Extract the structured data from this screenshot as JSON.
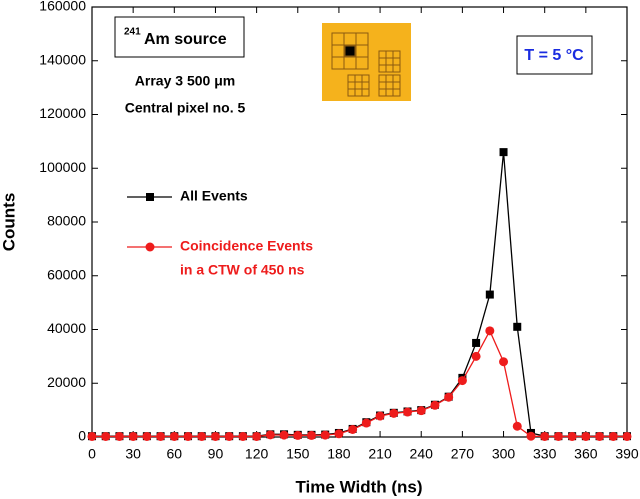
{
  "chart_data": {
    "type": "line",
    "x_label": "Time Width (ns)",
    "y_label": "Counts",
    "x": [
      0,
      10,
      20,
      30,
      40,
      50,
      60,
      70,
      80,
      90,
      100,
      110,
      120,
      130,
      140,
      150,
      160,
      170,
      180,
      190,
      200,
      210,
      220,
      230,
      240,
      250,
      260,
      270,
      280,
      290,
      300,
      310,
      320,
      330,
      340,
      350,
      360,
      370,
      380,
      390
    ],
    "series": [
      {
        "name": "All Events",
        "color": "#000000",
        "marker": "square",
        "values": [
          300,
          300,
          300,
          300,
          300,
          300,
          300,
          300,
          300,
          300,
          300,
          300,
          300,
          1000,
          1000,
          800,
          800,
          900,
          1500,
          3000,
          5500,
          8000,
          9000,
          9500,
          10000,
          12000,
          15000,
          22000,
          35000,
          53000,
          106000,
          41000,
          1500,
          300,
          300,
          300,
          300,
          300,
          300,
          300
        ]
      },
      {
        "name": [
          "Coincidence Events",
          "in a CTW of 450 ns"
        ],
        "color": "#ee1c1c",
        "marker": "circle",
        "values": [
          200,
          200,
          200,
          200,
          200,
          200,
          200,
          200,
          200,
          200,
          200,
          200,
          200,
          800,
          700,
          600,
          600,
          700,
          1200,
          2800,
          5200,
          7800,
          8800,
          9300,
          9800,
          11800,
          14800,
          21000,
          30000,
          39500,
          28000,
          4000,
          300,
          200,
          200,
          200,
          200,
          200,
          200,
          200
        ]
      }
    ],
    "xlim": [
      0,
      390
    ],
    "xticks": [
      0,
      30,
      60,
      90,
      120,
      150,
      180,
      210,
      240,
      270,
      300,
      330,
      360,
      390
    ],
    "ylim": [
      0,
      160000
    ],
    "yticks": [
      0,
      20000,
      40000,
      60000,
      80000,
      100000,
      120000,
      140000,
      160000
    ],
    "annotations": {
      "isotope_mass": "241",
      "source": "Am source",
      "array": "Array 3 500 μm",
      "pixel": "Central pixel no. 5",
      "temperature": "T = 5 °C"
    }
  }
}
